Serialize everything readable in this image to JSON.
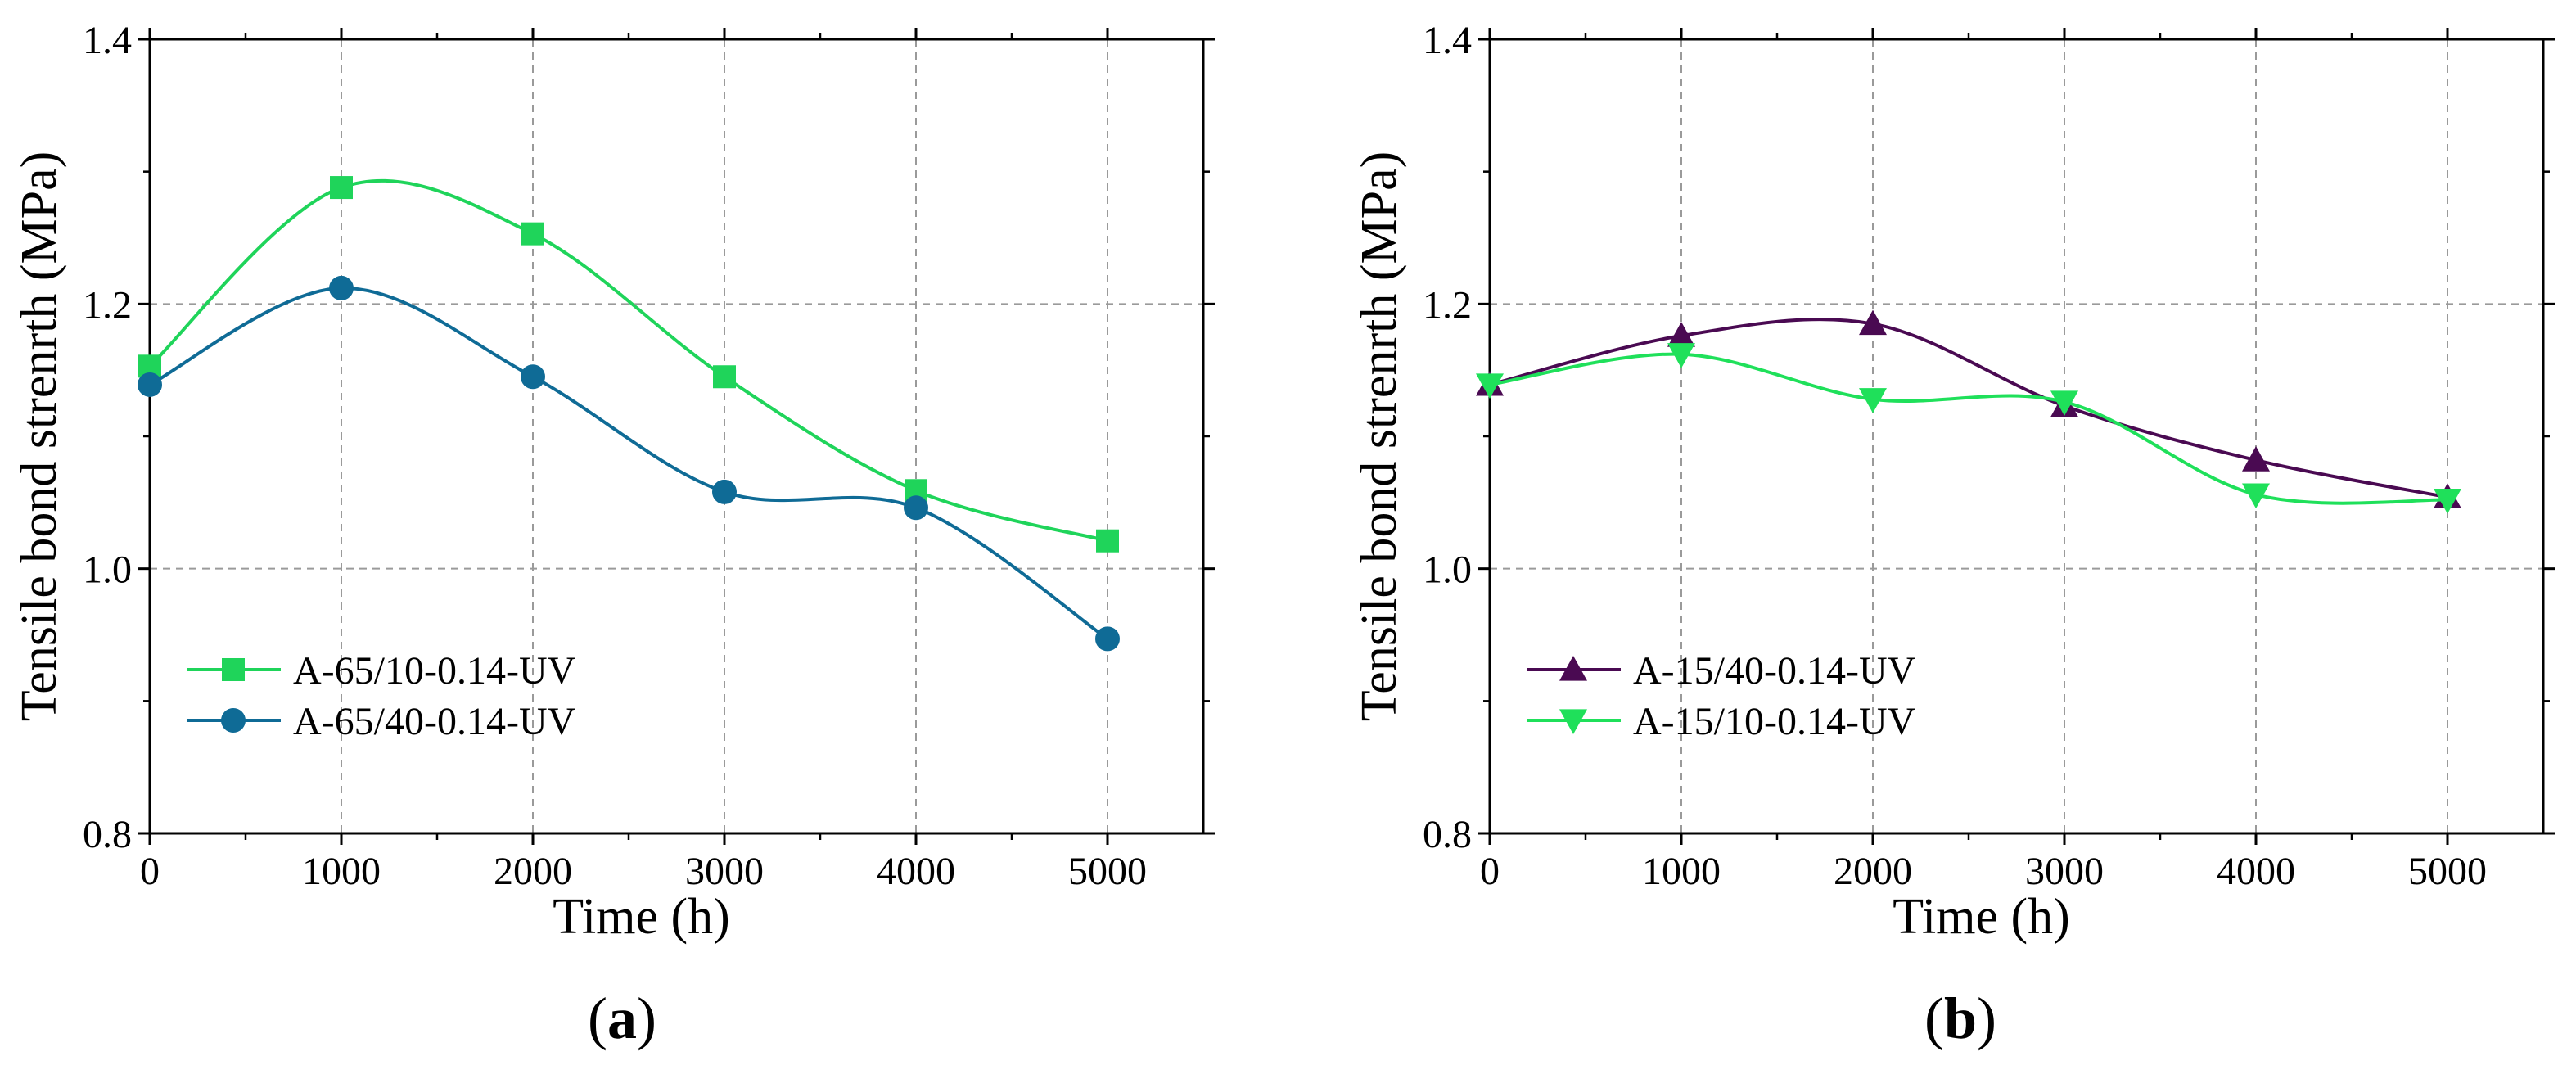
{
  "chart_data": [
    {
      "panel": "(a)",
      "panel_letter": "a",
      "type": "line",
      "xlabel": "Time (h)",
      "ylabel": "Tensile bond strenrth (MPa)",
      "xlim": [
        0,
        5500
      ],
      "ylim": [
        0.8,
        1.4
      ],
      "xticks": [
        0,
        1000,
        2000,
        3000,
        4000,
        5000
      ],
      "xtick_labels": [
        "0",
        "1000",
        "2000",
        "3000",
        "4000",
        "5000"
      ],
      "yticks": [
        0.8,
        1.0,
        1.2,
        1.4
      ],
      "ytick_labels": [
        "0.8",
        "1.0",
        "1.2",
        "1.4"
      ],
      "grid": true,
      "legend_position": "lower-left",
      "x": [
        0,
        1000,
        2000,
        3000,
        4000,
        5000
      ],
      "series": [
        {
          "name": "A-65/10-0.14-UV",
          "values": [
            1.153,
            1.288,
            1.253,
            1.145,
            1.059,
            1.021
          ],
          "color": "#1fd45a",
          "marker": "square"
        },
        {
          "name": "A-65/40-0.14-UV",
          "values": [
            1.139,
            1.212,
            1.145,
            1.058,
            1.046,
            0.947
          ],
          "color": "#0f6b96",
          "marker": "circle"
        }
      ]
    },
    {
      "panel": "(b)",
      "panel_letter": "b",
      "type": "line",
      "xlabel": "Time (h)",
      "ylabel": "Tensile bond strenrth (MPa)",
      "xlim": [
        0,
        5500
      ],
      "ylim": [
        0.8,
        1.4
      ],
      "xticks": [
        0,
        1000,
        2000,
        3000,
        4000,
        5000
      ],
      "xtick_labels": [
        "0",
        "1000",
        "2000",
        "3000",
        "4000",
        "5000"
      ],
      "yticks": [
        0.8,
        1.0,
        1.2,
        1.4
      ],
      "ytick_labels": [
        "0.8",
        "1.0",
        "1.2",
        "1.4"
      ],
      "grid": true,
      "legend_position": "lower-left",
      "x": [
        0,
        1000,
        2000,
        3000,
        4000,
        5000
      ],
      "series": [
        {
          "name": "A-15/40-0.14-UV",
          "values": [
            1.139,
            1.176,
            1.185,
            1.123,
            1.082,
            1.054
          ],
          "color": "#4a0a52",
          "marker": "triangle-up"
        },
        {
          "name": "A-15/10-0.14-UV",
          "values": [
            1.139,
            1.162,
            1.128,
            1.126,
            1.056,
            1.052
          ],
          "color": "#1fe05a",
          "marker": "triangle-down"
        }
      ]
    }
  ]
}
